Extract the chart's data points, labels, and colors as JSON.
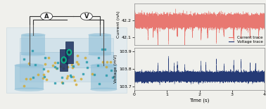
{
  "current_ylim": [
    42.05,
    42.3
  ],
  "current_yticks": [
    42.1,
    42.2
  ],
  "current_ylabel": "Current (nA)",
  "voltage_ylim": [
    103.68,
    103.92
  ],
  "voltage_yticks": [
    103.7,
    103.8,
    103.9
  ],
  "voltage_ylabel": "Voltage (mV)",
  "xlabel": "Time (s)",
  "xlim": [
    0,
    4
  ],
  "xticks": [
    0,
    1,
    2,
    3,
    4
  ],
  "current_color": "#e8726a",
  "voltage_color": "#1a3070",
  "current_baseline": 42.195,
  "current_noise_std": 0.016,
  "voltage_baseline": 103.755,
  "voltage_noise_std": 0.011,
  "legend_current": "Current trace",
  "legend_voltage": "Voltage trace",
  "current_dip_times": [
    0.42,
    0.58,
    0.72,
    1.05,
    1.32,
    1.55,
    1.78,
    2.05,
    2.25,
    2.52,
    2.75,
    3.05,
    3.28,
    3.55,
    3.82
  ],
  "current_dip_depths": [
    -0.09,
    -0.07,
    -0.12,
    -0.1,
    -0.08,
    -0.13,
    -0.07,
    -0.09,
    -0.08,
    -0.11,
    -0.07,
    -0.1,
    -0.08,
    -0.09,
    -0.07
  ],
  "voltage_spike_times": [
    0.72,
    1.05,
    1.22,
    1.32,
    1.55,
    2.05,
    2.2,
    2.52,
    2.75,
    3.05,
    3.28,
    3.55,
    3.72
  ],
  "voltage_spike_heights": [
    0.065,
    0.1,
    0.06,
    0.075,
    0.05,
    0.075,
    0.06,
    0.085,
    0.055,
    0.07,
    0.085,
    0.065,
    0.075
  ],
  "seed": 42,
  "bg_color": "#f0f0ec",
  "chart_bg": "#f0f0ec"
}
